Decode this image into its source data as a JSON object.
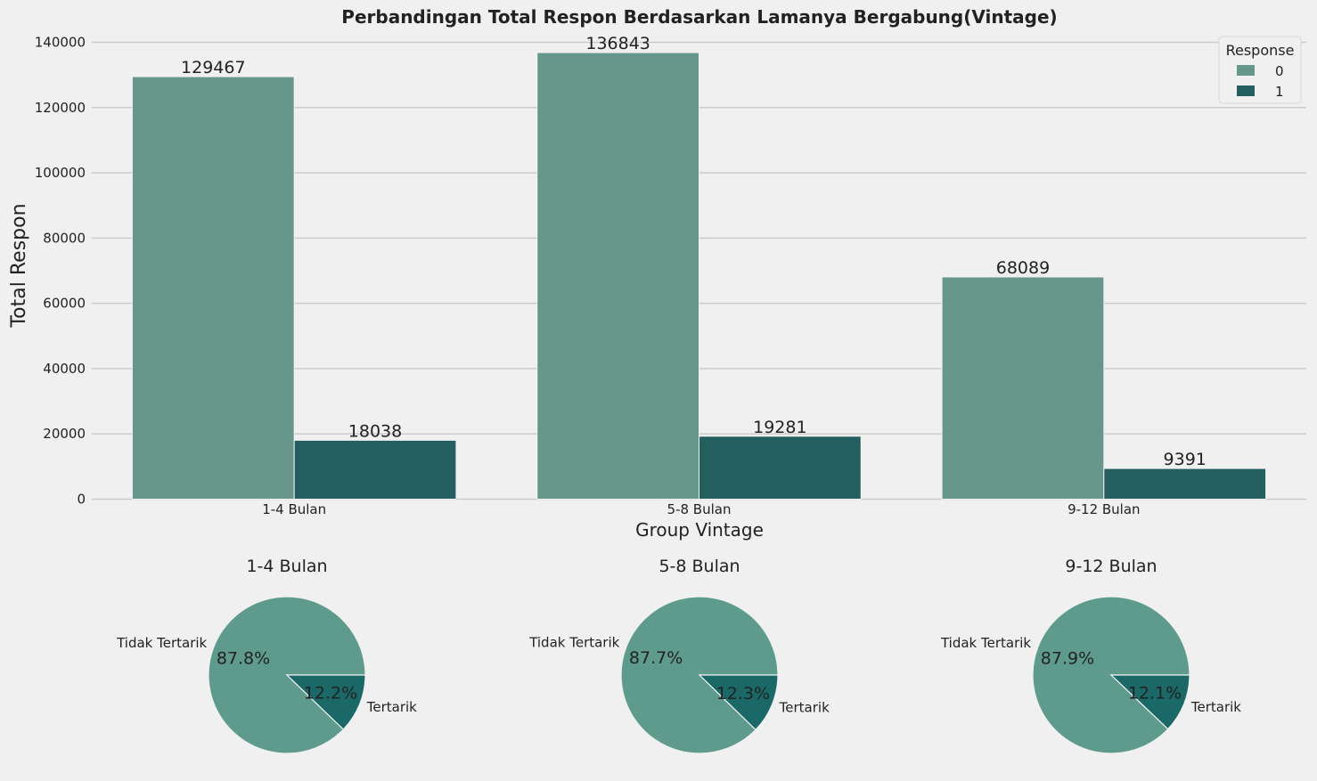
{
  "colors": {
    "background": "#f0f0f0",
    "grid": "#cbcbcb",
    "bar_response_0": "#67968a",
    "bar_response_1": "#255e5f",
    "pie_tidak_tertarik": "#5e9b8c",
    "pie_tertarik": "#1b6868",
    "text": "#222222"
  },
  "chart_data": [
    {
      "type": "bar",
      "title": "Perbandingan Total Respon Berdasarkan Lamanya Bergabung(Vintage)",
      "xlabel": "Group Vintage",
      "ylabel": "Total Respon",
      "categories": [
        "1-4 Bulan",
        "5-8 Bulan",
        "9-12 Bulan"
      ],
      "series": [
        {
          "name": "0",
          "values": [
            129467,
            136843,
            68089
          ]
        },
        {
          "name": "1",
          "values": [
            18038,
            19281,
            9391
          ]
        }
      ],
      "ylim": [
        0,
        140000
      ],
      "yticks": [
        0,
        20000,
        40000,
        60000,
        80000,
        100000,
        120000,
        140000
      ],
      "legend": {
        "title": "Response",
        "position": "top-right"
      },
      "grid": true
    },
    {
      "type": "pie",
      "title": "1-4 Bulan",
      "labels": [
        "Tidak Tertarik",
        "Tertarik"
      ],
      "values": [
        87.8,
        12.2
      ],
      "pct_labels": [
        "87.8%",
        "12.2%"
      ]
    },
    {
      "type": "pie",
      "title": "5-8 Bulan",
      "labels": [
        "Tidak Tertarik",
        "Tertarik"
      ],
      "values": [
        87.7,
        12.3
      ],
      "pct_labels": [
        "87.7%",
        "12.3%"
      ]
    },
    {
      "type": "pie",
      "title": "9-12 Bulan",
      "labels": [
        "Tidak Tertarik",
        "Tertarik"
      ],
      "values": [
        87.9,
        12.1
      ],
      "pct_labels": [
        "87.9%",
        "12.1%"
      ]
    }
  ]
}
